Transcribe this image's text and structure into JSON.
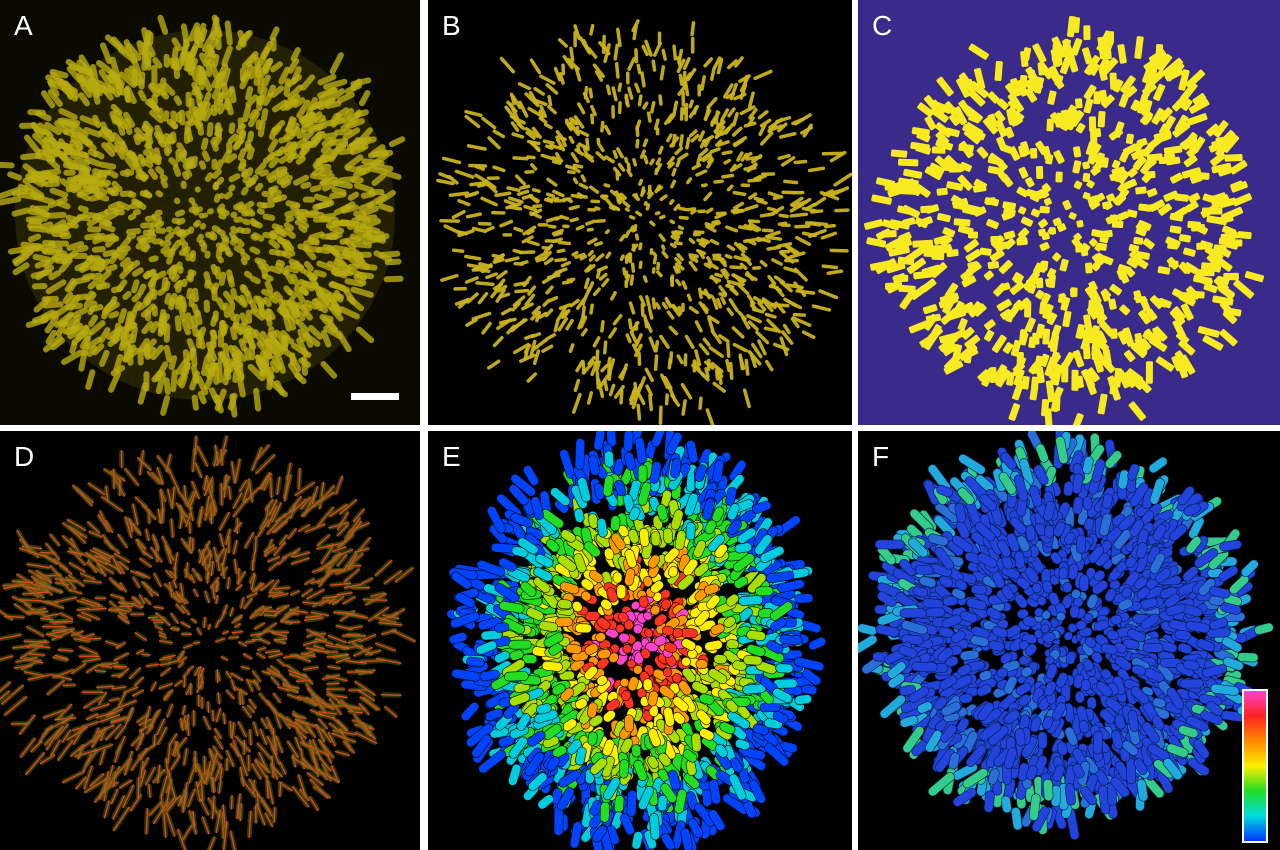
{
  "figure": {
    "panels": [
      {
        "id": "A",
        "label": "A",
        "style": "raw-fluorescence",
        "background": "#0b0a00",
        "cell_color": "#b7aa10"
      },
      {
        "id": "B",
        "label": "B",
        "style": "deconvolved",
        "background": "#000000",
        "cell_color": "#c9b21a"
      },
      {
        "id": "C",
        "label": "C",
        "style": "segmented-mask",
        "background": "#3a2a8a",
        "cell_color": "#f8ea20"
      },
      {
        "id": "D",
        "label": "D",
        "style": "cell-skeletons",
        "background": "#000000",
        "cell_color": "#e5471f"
      },
      {
        "id": "E",
        "label": "E",
        "style": "rainbow-3d-render",
        "background": "#000000"
      },
      {
        "id": "F",
        "label": "F",
        "style": "blue-3d-render",
        "background": "#000000",
        "cell_color": "#2244dd"
      }
    ],
    "scale_bar": {
      "panel": "A",
      "color": "#ffffff"
    },
    "colorbar": {
      "panel": "F",
      "stops": [
        "#ff44cc",
        "#ff2222",
        "#ff8800",
        "#ffee00",
        "#22dd22",
        "#00dddd",
        "#0033ff"
      ]
    }
  }
}
